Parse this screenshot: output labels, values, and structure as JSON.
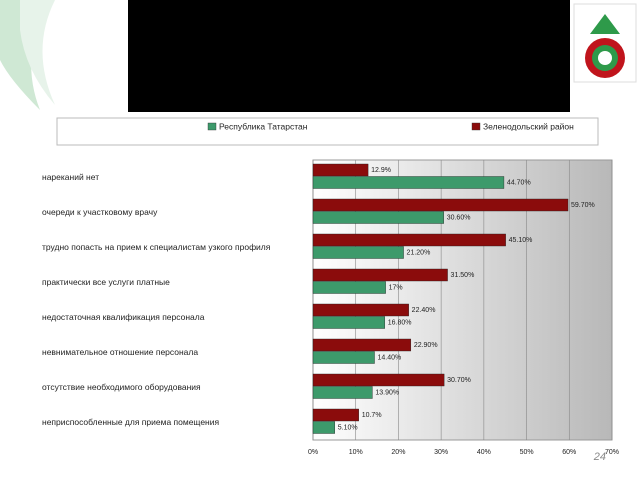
{
  "chart_data": {
    "type": "bar",
    "orientation": "horizontal",
    "categories": [
      "нареканий нет",
      "очереди к участковому врачу",
      "трудно попасть на прием к специалистам узкого профиля",
      "практически все услуги платные",
      "недостаточная квалификация персонала",
      "невнимательное отношение персонала",
      "отсутствие необходимого оборудования",
      "неприспособленные для приема помещения"
    ],
    "series": [
      {
        "name": "Республика Татарстан",
        "color": "#3d9a6b",
        "values": [
          44.7,
          30.6,
          21.2,
          17,
          16.8,
          14.4,
          13.9,
          5.1
        ],
        "value_labels": [
          "44.70%",
          "30.60%",
          "21.20%",
          "17%",
          "16.80%",
          "14.40%",
          "13.90%",
          "5.10%"
        ]
      },
      {
        "name": "Зеленодольский район",
        "color": "#8b0c0c",
        "values": [
          12.9,
          59.7,
          45.1,
          31.5,
          22.4,
          22.9,
          30.7,
          10.7
        ],
        "value_labels": [
          "12.9%",
          "59.70%",
          "45.10%",
          "31.50%",
          "22.40%",
          "22.90%",
          "30.70%",
          "10.7%"
        ]
      }
    ],
    "xlim": [
      0,
      70
    ],
    "xticks": [
      {
        "value": 0,
        "label": "0%"
      },
      {
        "value": 10,
        "label": "10%"
      },
      {
        "value": 20,
        "label": "20%"
      },
      {
        "value": 30,
        "label": "30%"
      },
      {
        "value": 40,
        "label": "40%"
      },
      {
        "value": 50,
        "label": "50%"
      },
      {
        "value": 60,
        "label": "60%"
      },
      {
        "value": 70,
        "label": "70%"
      }
    ],
    "grid": true
  },
  "page_number": "24"
}
